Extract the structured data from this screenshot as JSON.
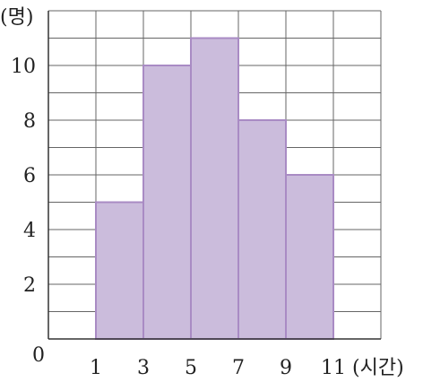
{
  "chart_data": {
    "type": "bar",
    "subtype": "histogram",
    "bins": [
      {
        "from": 1,
        "to": 3,
        "value": 5
      },
      {
        "from": 3,
        "to": 5,
        "value": 10
      },
      {
        "from": 5,
        "to": 7,
        "value": 11
      },
      {
        "from": 7,
        "to": 9,
        "value": 8
      },
      {
        "from": 9,
        "to": 11,
        "value": 6
      }
    ],
    "xlim": [
      -1,
      13
    ],
    "ylim": [
      0,
      12
    ],
    "x_ticks": [
      1,
      3,
      5,
      7,
      9,
      11
    ],
    "y_ticks": [
      2,
      4,
      6,
      8,
      10
    ],
    "origin_label": "0",
    "xunit": "(시간)",
    "yunit": "(명)",
    "grid": true,
    "x_grid_step": 2,
    "y_grid_step": 1,
    "colors": {
      "bar_fill": "#cbbcdc",
      "bar_stroke": "#a98bc4",
      "grid": "#666666"
    }
  }
}
